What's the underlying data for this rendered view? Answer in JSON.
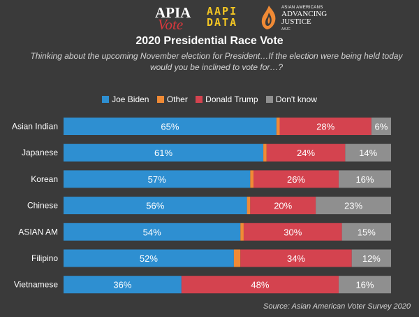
{
  "logos": {
    "apia_top": "APIA",
    "apia_bottom": "Vote",
    "aapi_line1": "AAPI",
    "aapi_line2": "DATA",
    "aajc_small": "ASIAN AMERICANS",
    "aajc_big_1": "ADVANCING",
    "aajc_big_2": "JUSTICE",
    "aajc_tiny": "AAJC"
  },
  "source": "Source: Asian American Voter Survey 2020",
  "colors": {
    "background": "#3a3a3a",
    "biden": "#2e8fd1",
    "other": "#f08a35",
    "trump": "#d4434f",
    "dont_know": "#8f8f8f"
  },
  "chart_data": {
    "type": "bar",
    "orientation": "horizontal",
    "stacked": true,
    "title": "2020 Presidential Race Vote",
    "subtitle": "Thinking about the upcoming November election for President…If the election were being held today would you be inclined to vote for…?",
    "categories": [
      "Asian Indian",
      "Japanese",
      "Korean",
      "Chinese",
      "ASIAN AM",
      "Filipino",
      "Vietnamese"
    ],
    "series": [
      {
        "name": "Joe Biden",
        "values": [
          65,
          61,
          57,
          56,
          54,
          52,
          36
        ],
        "labels": [
          "65%",
          "61%",
          "57%",
          "56%",
          "54%",
          "52%",
          "36%"
        ]
      },
      {
        "name": "Other",
        "values": [
          1,
          1,
          1,
          1,
          1,
          2,
          0
        ],
        "labels": [
          "",
          "",
          "",
          "",
          "",
          "",
          ""
        ]
      },
      {
        "name": "Donald Trump",
        "values": [
          28,
          24,
          26,
          20,
          30,
          34,
          48
        ],
        "labels": [
          "28%",
          "24%",
          "26%",
          "20%",
          "30%",
          "34%",
          "48%"
        ]
      },
      {
        "name": "Don't know",
        "values": [
          6,
          14,
          16,
          23,
          15,
          12,
          16
        ],
        "labels": [
          "6%",
          "14%",
          "16%",
          "23%",
          "15%",
          "12%",
          "16%"
        ]
      }
    ],
    "xlim": [
      0,
      100
    ],
    "legend_position": "top",
    "grid": false
  }
}
